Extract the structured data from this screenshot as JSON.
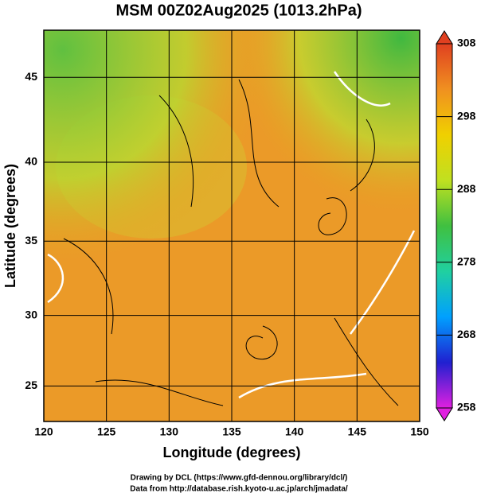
{
  "chart_data": {
    "type": "map",
    "title": "MSM 00Z02Aug2025 (1013.2hPa)",
    "x_label": "Longitude (degrees)",
    "y_label": "Latitude  (degrees)",
    "xlim": [
      120,
      150
    ],
    "ylim": [
      22.4,
      47.6
    ],
    "xticks": [
      120,
      125,
      130,
      135,
      140,
      145,
      150
    ],
    "yticks": [
      25,
      30,
      35,
      40,
      45
    ],
    "projection": "mercator",
    "grid": true,
    "colorbar": {
      "lim": [
        258,
        308
      ],
      "ticks": [
        258,
        268,
        278,
        288,
        298,
        308
      ],
      "colors": [
        "#e020e0",
        "#2020d0",
        "#00a0ff",
        "#20d0a0",
        "#40c040",
        "#c0e020",
        "#f0d000",
        "#f09020",
        "#e04020"
      ]
    },
    "footer": [
      "Drawing by DCL (https://www.gfd-dennou.org/library/dcl/)",
      "Data from http://database.rish.kyoto-u.ac.jp/arch/jmadata/"
    ]
  }
}
